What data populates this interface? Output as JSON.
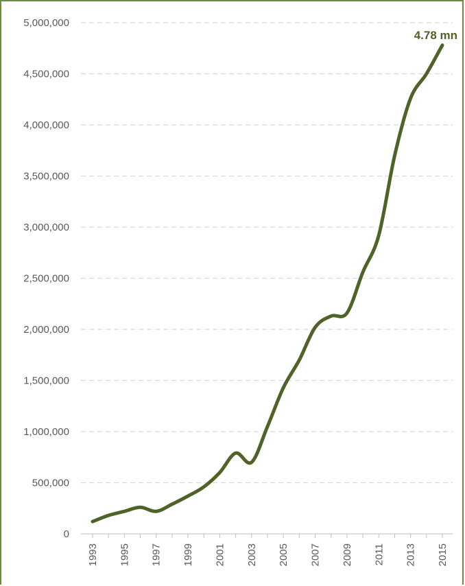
{
  "chart_data": {
    "type": "line",
    "title": "",
    "xlabel": "",
    "ylabel": "",
    "x": [
      1993,
      1994,
      1995,
      1996,
      1997,
      1998,
      1999,
      2000,
      2001,
      2002,
      2003,
      2004,
      2005,
      2006,
      2007,
      2008,
      2009,
      2010,
      2011,
      2012,
      2013,
      2014,
      2015
    ],
    "series": [
      {
        "values": [
          120000,
          180000,
          220000,
          260000,
          220000,
          290000,
          370000,
          460000,
          600000,
          790000,
          700000,
          1050000,
          1430000,
          1700000,
          2020000,
          2130000,
          2160000,
          2560000,
          2920000,
          3700000,
          4260000,
          4500000,
          4780000
        ]
      }
    ],
    "xlim": [
      1993,
      2015
    ],
    "ylim": [
      0,
      5000000
    ],
    "y_ticks": [
      "0",
      "500,000",
      "1,000,000",
      "1,500,000",
      "2,000,000",
      "2,500,000",
      "3,000,000",
      "3,500,000",
      "4,000,000",
      "4,500,000",
      "5,000,000"
    ],
    "x_ticks": [
      "1993",
      "1995",
      "1997",
      "1999",
      "2001",
      "2003",
      "2005",
      "2007",
      "2009",
      "2011",
      "2013",
      "2015"
    ],
    "grid": true,
    "annotation": "4.78 mn",
    "line_color": "#4f6228"
  }
}
